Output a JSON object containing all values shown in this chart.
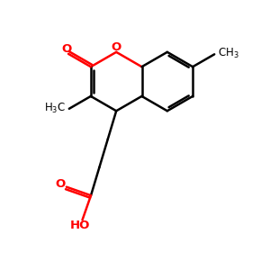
{
  "bg_color": "#ffffff",
  "bond_color": "#000000",
  "o_color": "#ff0000",
  "text_color": "#000000",
  "linewidth": 1.8,
  "figsize": [
    3.0,
    3.0
  ],
  "dpi": 100,
  "xlim": [
    0,
    10
  ],
  "ylim": [
    0,
    10
  ]
}
